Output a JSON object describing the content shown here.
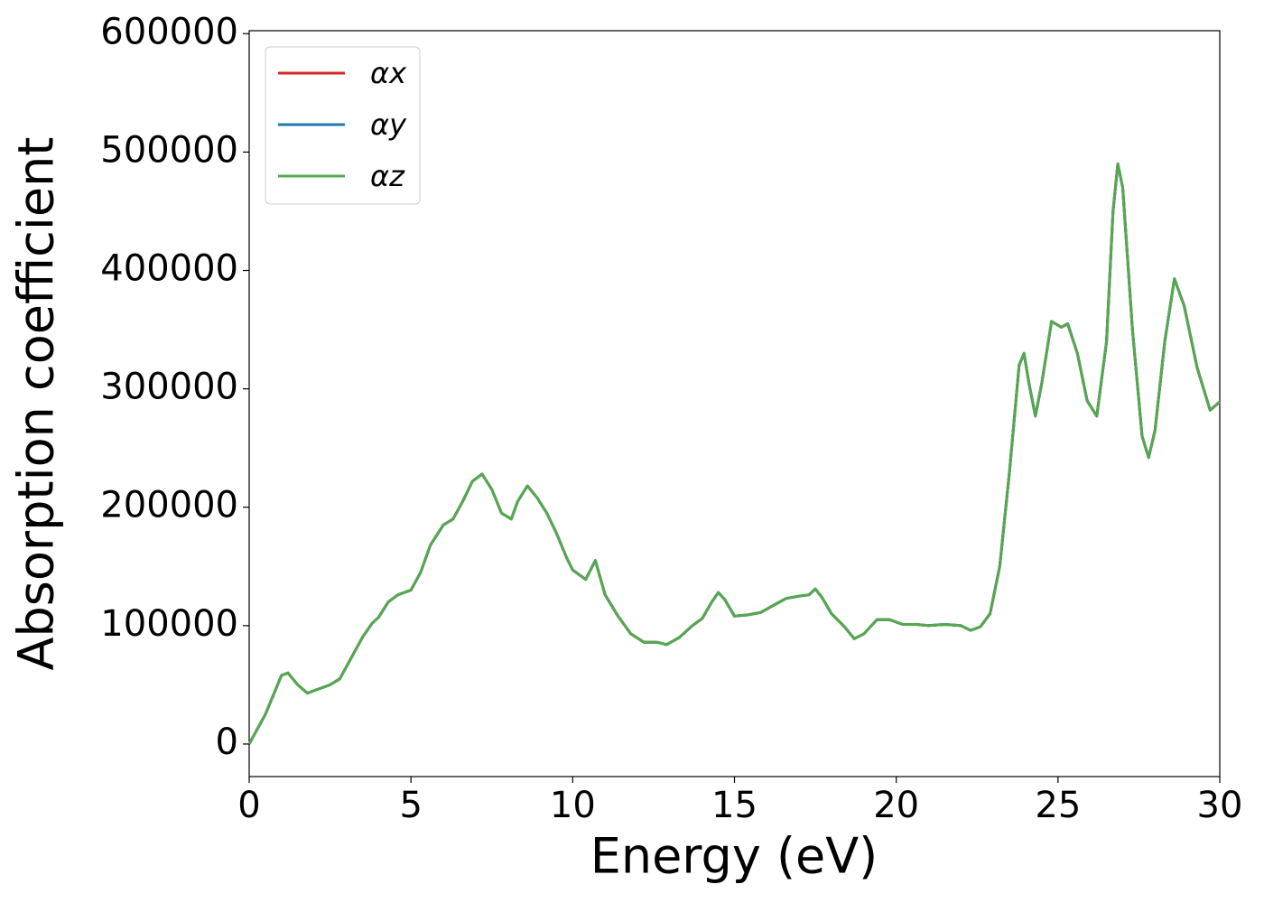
{
  "chart_data": {
    "type": "line",
    "xlabel": "Energy (eV)",
    "ylabel": "Absorption coefficient",
    "x": [
      0,
      0.5,
      1.0,
      1.2,
      1.5,
      1.8,
      2.0,
      2.5,
      2.8,
      3.0,
      3.5,
      3.8,
      4.0,
      4.3,
      4.6,
      5.0,
      5.3,
      5.6,
      6.0,
      6.3,
      6.6,
      6.9,
      7.2,
      7.5,
      7.8,
      8.1,
      8.3,
      8.6,
      8.9,
      9.2,
      9.5,
      9.8,
      10.0,
      10.4,
      10.7,
      11.0,
      11.4,
      11.8,
      12.2,
      12.6,
      12.9,
      13.3,
      13.7,
      14.0,
      14.3,
      14.5,
      14.7,
      15.0,
      15.4,
      15.8,
      16.2,
      16.6,
      17.0,
      17.3,
      17.5,
      17.7,
      18.0,
      18.4,
      18.7,
      19.0,
      19.4,
      19.8,
      20.2,
      20.6,
      21.0,
      21.5,
      22.0,
      22.3,
      22.6,
      22.9,
      23.2,
      23.5,
      23.8,
      23.95,
      24.1,
      24.3,
      24.5,
      24.8,
      25.1,
      25.3,
      25.6,
      25.9,
      26.2,
      26.5,
      26.7,
      26.85,
      27.0,
      27.3,
      27.6,
      27.8,
      28.0,
      28.3,
      28.6,
      28.9,
      29.3,
      29.7,
      30.0
    ],
    "series": [
      {
        "name": "αx",
        "color": "#d62728",
        "values": [
          0,
          25000,
          58000,
          60000,
          50000,
          43000,
          45000,
          50000,
          55000,
          65000,
          90000,
          102000,
          107000,
          120000,
          126000,
          130000,
          145000,
          168000,
          185000,
          190000,
          205000,
          222000,
          228000,
          215000,
          195000,
          190000,
          205000,
          218000,
          208000,
          195000,
          178000,
          158000,
          147000,
          139000,
          155000,
          126000,
          108000,
          93000,
          86000,
          86000,
          84000,
          90000,
          100000,
          106000,
          120000,
          128000,
          122000,
          108000,
          109000,
          111000,
          117000,
          123000,
          125000,
          126000,
          131000,
          124000,
          110000,
          99000,
          89000,
          93000,
          105000,
          105000,
          101000,
          101000,
          100000,
          101000,
          100000,
          96000,
          99000,
          110000,
          150000,
          230000,
          320000,
          330000,
          305000,
          277000,
          305000,
          357000,
          352000,
          355000,
          330000,
          290000,
          277000,
          340000,
          450000,
          490000,
          470000,
          350000,
          260000,
          242000,
          265000,
          340000,
          393000,
          370000,
          318000,
          282000,
          289000
        ]
      },
      {
        "name": "αy",
        "color": "#1f77b4",
        "values": [
          0,
          25000,
          58000,
          60000,
          50000,
          43000,
          45000,
          50000,
          55000,
          65000,
          90000,
          102000,
          107000,
          120000,
          126000,
          130000,
          145000,
          168000,
          185000,
          190000,
          205000,
          222000,
          228000,
          215000,
          195000,
          190000,
          205000,
          218000,
          208000,
          195000,
          178000,
          158000,
          147000,
          139000,
          155000,
          126000,
          108000,
          93000,
          86000,
          86000,
          84000,
          90000,
          100000,
          106000,
          120000,
          128000,
          122000,
          108000,
          109000,
          111000,
          117000,
          123000,
          125000,
          126000,
          131000,
          124000,
          110000,
          99000,
          89000,
          93000,
          105000,
          105000,
          101000,
          101000,
          100000,
          101000,
          100000,
          96000,
          99000,
          110000,
          150000,
          230000,
          320000,
          330000,
          305000,
          277000,
          305000,
          357000,
          352000,
          355000,
          330000,
          290000,
          277000,
          340000,
          450000,
          490000,
          470000,
          350000,
          260000,
          242000,
          265000,
          340000,
          393000,
          370000,
          318000,
          282000,
          289000
        ]
      },
      {
        "name": "αz",
        "color": "#55a84f",
        "values": [
          0,
          25000,
          58000,
          60000,
          50000,
          43000,
          45000,
          50000,
          55000,
          65000,
          90000,
          102000,
          107000,
          120000,
          126000,
          130000,
          145000,
          168000,
          185000,
          190000,
          205000,
          222000,
          228000,
          215000,
          195000,
          190000,
          205000,
          218000,
          208000,
          195000,
          178000,
          158000,
          147000,
          139000,
          155000,
          126000,
          108000,
          93000,
          86000,
          86000,
          84000,
          90000,
          100000,
          106000,
          120000,
          128000,
          122000,
          108000,
          109000,
          111000,
          117000,
          123000,
          125000,
          126000,
          131000,
          124000,
          110000,
          99000,
          89000,
          93000,
          105000,
          105000,
          101000,
          101000,
          100000,
          101000,
          100000,
          96000,
          99000,
          110000,
          150000,
          230000,
          320000,
          330000,
          305000,
          277000,
          305000,
          357000,
          352000,
          355000,
          330000,
          290000,
          277000,
          340000,
          450000,
          490000,
          470000,
          350000,
          260000,
          242000,
          265000,
          340000,
          393000,
          370000,
          318000,
          282000,
          289000
        ]
      }
    ],
    "xlim": [
      0,
      30
    ],
    "xticks": [
      0,
      5,
      10,
      15,
      20,
      25,
      30
    ],
    "ylim": [
      -27500,
      602500
    ],
    "yticks": [
      0,
      100000,
      200000,
      300000,
      400000,
      500000,
      600000
    ],
    "grid": false,
    "legend": "upper left"
  }
}
